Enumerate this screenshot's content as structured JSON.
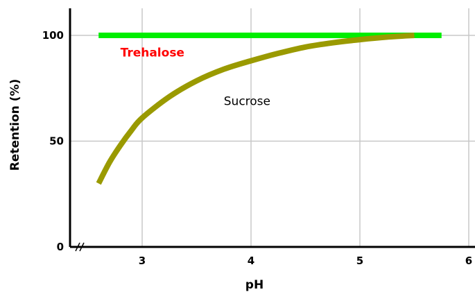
{
  "chart_data": {
    "type": "line",
    "xlabel": "pH",
    "ylabel": "Retention (%)",
    "x_ticks": [
      "3",
      "4",
      "5",
      "6"
    ],
    "y_ticks": [
      "0",
      "50",
      "100"
    ],
    "xlim": [
      2.4,
      6.2
    ],
    "ylim": [
      0,
      112
    ],
    "grid": true,
    "axis_break_x": true,
    "series": [
      {
        "name": "Trehalose",
        "color": "#00ee00",
        "x": [
          2.6,
          5.75
        ],
        "y": [
          100,
          100
        ]
      },
      {
        "name": "Sucrose",
        "color": "#9a9a00",
        "x": [
          2.6,
          2.7,
          2.8,
          2.9,
          3.0,
          3.25,
          3.5,
          3.75,
          4.0,
          4.25,
          4.5,
          4.75,
          5.0,
          5.25,
          5.5
        ],
        "y": [
          30,
          40,
          48,
          55,
          61,
          71,
          78.5,
          84,
          88,
          91.5,
          94.5,
          96.5,
          98,
          99.2,
          100
        ]
      }
    ],
    "annotations": [
      {
        "text": "Trehalose",
        "color": "#ff0000",
        "at_x": 2.8,
        "at_y": 90
      },
      {
        "text": "Sucrose",
        "color": "#000000",
        "at_x": 3.75,
        "at_y": 67
      }
    ]
  }
}
